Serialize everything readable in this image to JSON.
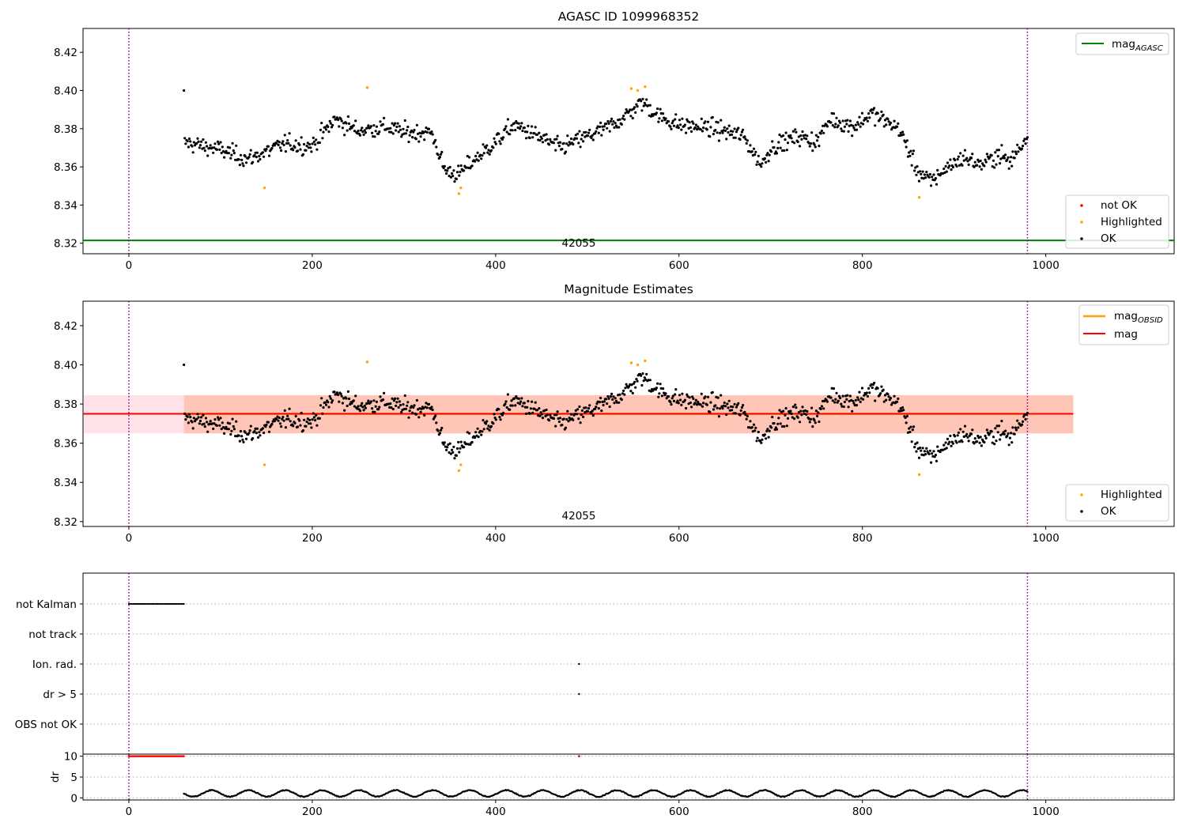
{
  "figure": {
    "top_title": "AGASC ID 1099968352",
    "mid_title": "Magnitude Estimates",
    "obsid_label": "42055"
  },
  "legends": {
    "top_line": {
      "label": "mag",
      "sub": "AGASC"
    },
    "top_points": [
      "not OK",
      "Highlighted",
      "OK"
    ],
    "mid_lines": [
      {
        "label": "mag",
        "sub": "OBSID"
      },
      {
        "label": "mag",
        "sub": ""
      }
    ],
    "mid_points": [
      "Highlighted",
      "OK"
    ]
  },
  "colors": {
    "ok": "#000000",
    "highlighted": "#ffa500",
    "not_ok": "#ff0000",
    "agasc_line": "#008000",
    "mag_line": "#ff0000",
    "mag_obsid_line": "#ffa500",
    "obs_boundary": "#800080",
    "band_outer": "#ffc0cb",
    "band_inner": "#ffa07a"
  },
  "chart_data": [
    {
      "type": "scatter",
      "title": "AGASC ID 1099968352",
      "xlabel": "",
      "ylabel": "",
      "xlim": [
        -50,
        1140
      ],
      "ylim": [
        8.3145,
        8.4325
      ],
      "x_ticks": [
        0,
        200,
        400,
        600,
        800,
        1000
      ],
      "y_ticks": [
        8.32,
        8.34,
        8.36,
        8.38,
        8.4,
        8.42
      ],
      "y_tick_labels": [
        "8.32",
        "8.34",
        "8.36",
        "8.38",
        "8.40",
        "8.42"
      ],
      "mag_agasc": 8.3215,
      "obs_boundaries": [
        0,
        980
      ],
      "ok_series": {
        "x_range": [
          60,
          980
        ],
        "baseline": [
          [
            60,
            8.373
          ],
          [
            100,
            8.369
          ],
          [
            130,
            8.364
          ],
          [
            150,
            8.368
          ],
          [
            170,
            8.372
          ],
          [
            200,
            8.371
          ],
          [
            225,
            8.385
          ],
          [
            250,
            8.379
          ],
          [
            280,
            8.381
          ],
          [
            300,
            8.378
          ],
          [
            330,
            8.378
          ],
          [
            345,
            8.358
          ],
          [
            360,
            8.356
          ],
          [
            375,
            8.363
          ],
          [
            400,
            8.373
          ],
          [
            420,
            8.382
          ],
          [
            450,
            8.375
          ],
          [
            470,
            8.37
          ],
          [
            500,
            8.376
          ],
          [
            520,
            8.38
          ],
          [
            540,
            8.386
          ],
          [
            560,
            8.394
          ],
          [
            580,
            8.386
          ],
          [
            600,
            8.382
          ],
          [
            640,
            8.38
          ],
          [
            670,
            8.376
          ],
          [
            690,
            8.361
          ],
          [
            700,
            8.37
          ],
          [
            730,
            8.376
          ],
          [
            750,
            8.373
          ],
          [
            765,
            8.385
          ],
          [
            790,
            8.381
          ],
          [
            810,
            8.388
          ],
          [
            840,
            8.38
          ],
          [
            860,
            8.358
          ],
          [
            875,
            8.352
          ],
          [
            890,
            8.359
          ],
          [
            910,
            8.365
          ],
          [
            930,
            8.361
          ],
          [
            950,
            8.367
          ],
          [
            960,
            8.362
          ],
          [
            980,
            8.376
          ]
        ],
        "count": 920
      },
      "highlighted": [
        {
          "x": 148,
          "y": 8.349
        },
        {
          "x": 260,
          "y": 8.4015
        },
        {
          "x": 360,
          "y": 8.346
        },
        {
          "x": 362,
          "y": 8.349
        },
        {
          "x": 548,
          "y": 8.401
        },
        {
          "x": 555,
          "y": 8.4
        },
        {
          "x": 563,
          "y": 8.402
        },
        {
          "x": 862,
          "y": 8.344
        }
      ],
      "not_ok": []
    },
    {
      "type": "scatter",
      "title": "Magnitude Estimates",
      "xlabel": "",
      "ylabel": "",
      "xlim": [
        -50,
        1140
      ],
      "ylim": [
        8.3175,
        8.4325
      ],
      "x_ticks": [
        0,
        200,
        400,
        600,
        800,
        1000
      ],
      "y_ticks": [
        8.32,
        8.34,
        8.36,
        8.38,
        8.4,
        8.42
      ],
      "y_tick_labels": [
        "8.32",
        "8.34",
        "8.36",
        "8.38",
        "8.40",
        "8.42"
      ],
      "mag": 8.375,
      "mag_obsid": 8.375,
      "band_outer": {
        "x_range": [
          -50,
          1030
        ],
        "y_range": [
          8.365,
          8.3845
        ]
      },
      "band_inner": {
        "x_range": [
          60,
          1030
        ],
        "y_range": [
          8.365,
          8.3845
        ]
      },
      "obs_boundaries": [
        0,
        980
      ],
      "same_points_as_top": true
    },
    {
      "type": "scatter",
      "title": "",
      "xlabel": "",
      "ylabel": "",
      "xlim": [
        -50,
        1140
      ],
      "x_ticks": [
        0,
        200,
        400,
        600,
        800,
        1000
      ],
      "flag_rows": [
        "not Kalman",
        "not track",
        "Ion. rad.",
        "dr > 5",
        "OBS not OK"
      ],
      "flags": {
        "not Kalman": {
          "x_ranges": [
            [
              0,
              60
            ]
          ]
        },
        "not track": {
          "x_ranges": []
        },
        "Ion. rad.": {
          "x_points": [
            491
          ]
        },
        "dr > 5": {
          "x_points": [
            491
          ]
        },
        "OBS not OK": {
          "x_ranges": []
        }
      },
      "obs_boundaries": [
        0,
        980
      ]
    },
    {
      "type": "scatter",
      "title": "",
      "xlabel": "",
      "ylabel": "dr",
      "xlim": [
        -50,
        1140
      ],
      "ylim": [
        -0.5,
        10.5
      ],
      "x_ticks": [
        0,
        200,
        400,
        600,
        800,
        1000
      ],
      "y_ticks": [
        0,
        5,
        10
      ],
      "dr_not_ok": {
        "x_ranges": [
          [
            0,
            60
          ]
        ],
        "points": [
          491
        ],
        "value": 10
      },
      "dr_ok": {
        "x_range": [
          60,
          980
        ],
        "low": 0.2,
        "high": 1.9
      },
      "obs_boundaries": [
        0,
        980
      ]
    }
  ]
}
